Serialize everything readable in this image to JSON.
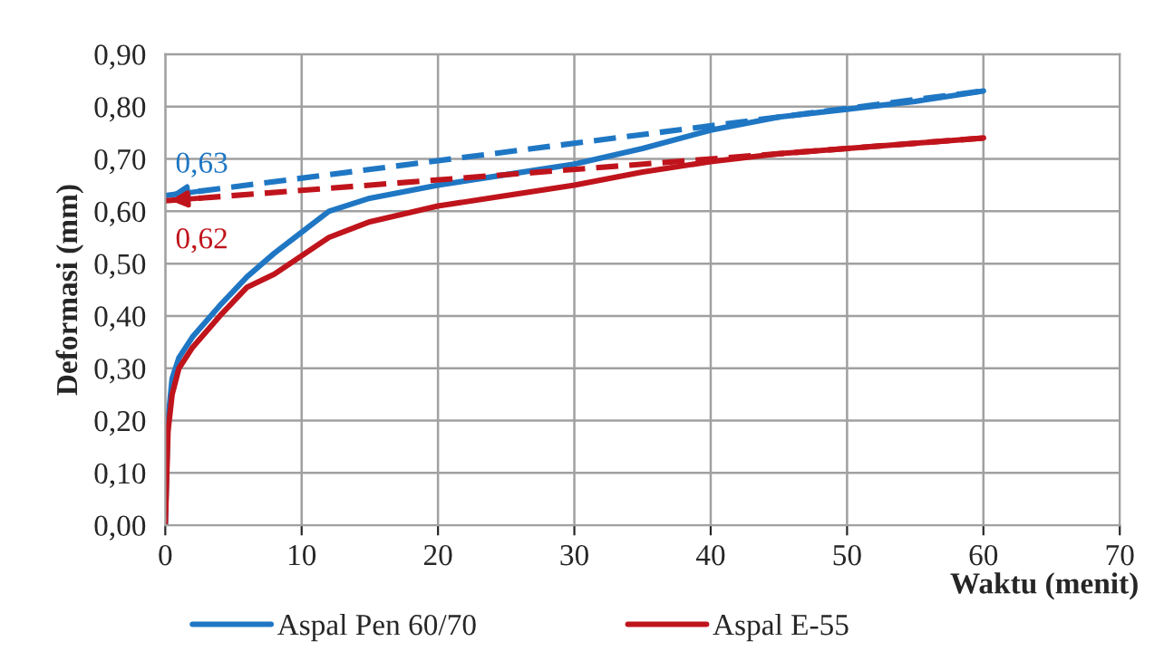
{
  "chart_data": {
    "type": "line",
    "xlabel": "Waktu (menit)",
    "ylabel": "Deformasi (mm)",
    "series": [
      {
        "name": "Aspal Pen 60/70",
        "color": "#1f77c4",
        "x": [
          0,
          0.2,
          0.5,
          1,
          2,
          4,
          6,
          8,
          10,
          12,
          15,
          20,
          25,
          30,
          35,
          40,
          45,
          50,
          55,
          60
        ],
        "values": [
          0,
          0.2,
          0.28,
          0.32,
          0.36,
          0.42,
          0.475,
          0.52,
          0.56,
          0.6,
          0.625,
          0.65,
          0.67,
          0.69,
          0.72,
          0.755,
          0.78,
          0.795,
          0.81,
          0.83
        ]
      },
      {
        "name": "Aspal E-55",
        "color": "#c0141c",
        "x": [
          0,
          0.2,
          0.5,
          1,
          2,
          4,
          6,
          8,
          10,
          12,
          15,
          20,
          25,
          30,
          35,
          40,
          45,
          50,
          55,
          60
        ],
        "values": [
          0,
          0.18,
          0.25,
          0.3,
          0.34,
          0.4,
          0.455,
          0.48,
          0.515,
          0.55,
          0.58,
          0.61,
          0.63,
          0.65,
          0.675,
          0.695,
          0.71,
          0.72,
          0.73,
          0.74
        ]
      },
      {
        "color": "#1f77c4",
        "line_style": "dashed",
        "x": [
          0,
          60
        ],
        "values": [
          0.63,
          0.83
        ]
      },
      {
        "color": "#c0141c",
        "line_style": "dashed",
        "x": [
          0,
          60
        ],
        "values": [
          0.62,
          0.74
        ]
      }
    ],
    "annotations": [
      {
        "text": "0,63",
        "x": 0,
        "y": 0.63
      },
      {
        "text": "0,62",
        "x": 0,
        "y": 0.62
      }
    ],
    "xlim": [
      0,
      70
    ],
    "xticks": [
      0,
      10,
      20,
      30,
      40,
      50,
      60,
      70
    ],
    "ylim": [
      0,
      0.9
    ],
    "yticks": [
      {
        "value": 0,
        "label": "0,00"
      },
      {
        "value": 0.1,
        "label": "0,10"
      },
      {
        "value": 0.2,
        "label": "0,20"
      },
      {
        "value": 0.3,
        "label": "0,30"
      },
      {
        "value": 0.4,
        "label": "0,40"
      },
      {
        "value": 0.5,
        "label": "0,50"
      },
      {
        "value": 0.6,
        "label": "0,60"
      },
      {
        "value": 0.7,
        "label": "0,70"
      },
      {
        "value": 0.8,
        "label": "0,80"
      },
      {
        "value": 0.9,
        "label": "0,90"
      }
    ],
    "grid": true,
    "legend": "bottom",
    "marker": "none",
    "line_style": "solid"
  }
}
